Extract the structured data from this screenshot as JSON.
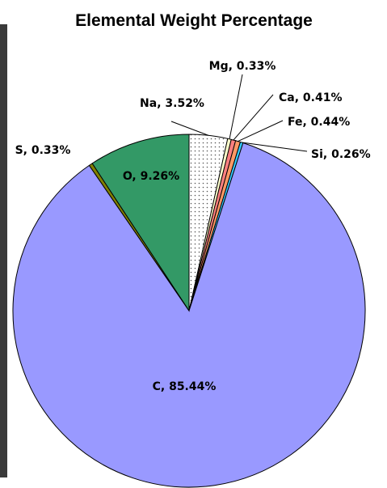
{
  "chart_data": {
    "type": "pie",
    "title": "Elemental Weight Percentage",
    "values": [
      3.52,
      0.33,
      0.41,
      0.44,
      0.26,
      85.44,
      0.33,
      9.26
    ],
    "value_labels": [
      "Na, 3.52%",
      "Mg, 0.33%",
      "Ca, 0.41%",
      "Fe, 0.44%",
      "Si, 0.26%",
      "C, 85.44%",
      "S, 0.33%",
      "O, 9.26%"
    ],
    "colors": [
      "#ffffff",
      "#ffffcc",
      "#ff8080",
      "#ff9966",
      "#33ccff",
      "#9999ff",
      "#808000",
      "#339966"
    ],
    "patterns": [
      "dots",
      null,
      null,
      null,
      null,
      null,
      null,
      null
    ]
  }
}
